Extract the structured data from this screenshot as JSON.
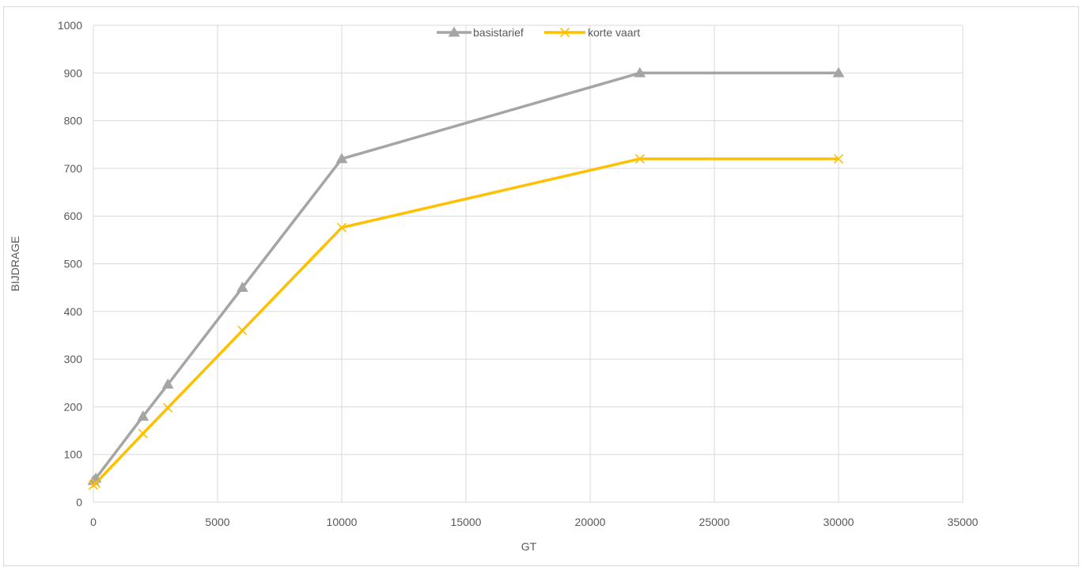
{
  "chart_data": {
    "type": "line",
    "title": "",
    "xlabel": "GT",
    "ylabel": "BIJDRAGE",
    "xlim": [
      0,
      35000
    ],
    "ylim": [
      0,
      1000
    ],
    "x_ticks": [
      "0",
      "5000",
      "10000",
      "15000",
      "20000",
      "25000",
      "30000",
      "35000"
    ],
    "y_ticks": [
      "0",
      "100",
      "200",
      "300",
      "400",
      "500",
      "600",
      "700",
      "800",
      "900",
      "1000"
    ],
    "grid": true,
    "legend_position": "top-center",
    "series": [
      {
        "name": "basistarief",
        "color": "#a5a5a5",
        "marker": "triangle",
        "x": [
          0,
          100,
          2000,
          3000,
          6000,
          10000,
          22000,
          30000
        ],
        "y": [
          45,
          50,
          180,
          247,
          450,
          720,
          900,
          900
        ]
      },
      {
        "name": "korte vaart",
        "color": "#ffc000",
        "marker": "x",
        "x": [
          0,
          100,
          2000,
          3000,
          6000,
          10000,
          22000,
          30000
        ],
        "y": [
          36,
          40,
          144,
          198,
          360,
          576,
          720,
          720
        ]
      }
    ]
  }
}
